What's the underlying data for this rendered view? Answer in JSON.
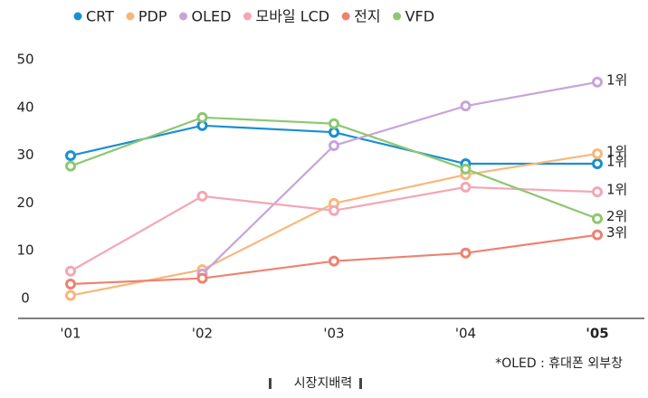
{
  "chart_data": {
    "type": "line",
    "categories": [
      "'01",
      "'02",
      "'03",
      "'04",
      "'05"
    ],
    "series": [
      {
        "name": "CRT",
        "color": "#1a8fd0",
        "values": [
          29.9,
          36.2,
          34.8,
          28.2,
          28.2
        ],
        "rank": "1위"
      },
      {
        "name": "PDP",
        "color": "#f8b77a",
        "values": [
          0.6,
          6,
          19.9,
          25.9,
          30.3
        ],
        "rank": "1위"
      },
      {
        "name": "OLED",
        "color": "#c8a4d8",
        "values": [
          null,
          5.1,
          32,
          40.3,
          45.3
        ],
        "rank": "1위"
      },
      {
        "name": "모바일 LCD",
        "color": "#f3a7b5",
        "values": [
          5.7,
          21.4,
          18.4,
          23.3,
          22.3
        ],
        "rank": "1위"
      },
      {
        "name": "전지",
        "color": "#ef8170",
        "values": [
          3,
          4.2,
          7.8,
          9.5,
          13.3
        ],
        "rank": "3위"
      },
      {
        "name": "VFD",
        "color": "#8dc870",
        "values": [
          27.7,
          37.9,
          36.6,
          27.1,
          16.7
        ],
        "rank": "2위"
      }
    ],
    "ylim": [
      -4.2,
      50
    ],
    "yticks": [
      0,
      10,
      20,
      30,
      40,
      50
    ],
    "grid": false,
    "note": "*OLED : 휴대폰 외부창",
    "caption": "시장지배력"
  }
}
